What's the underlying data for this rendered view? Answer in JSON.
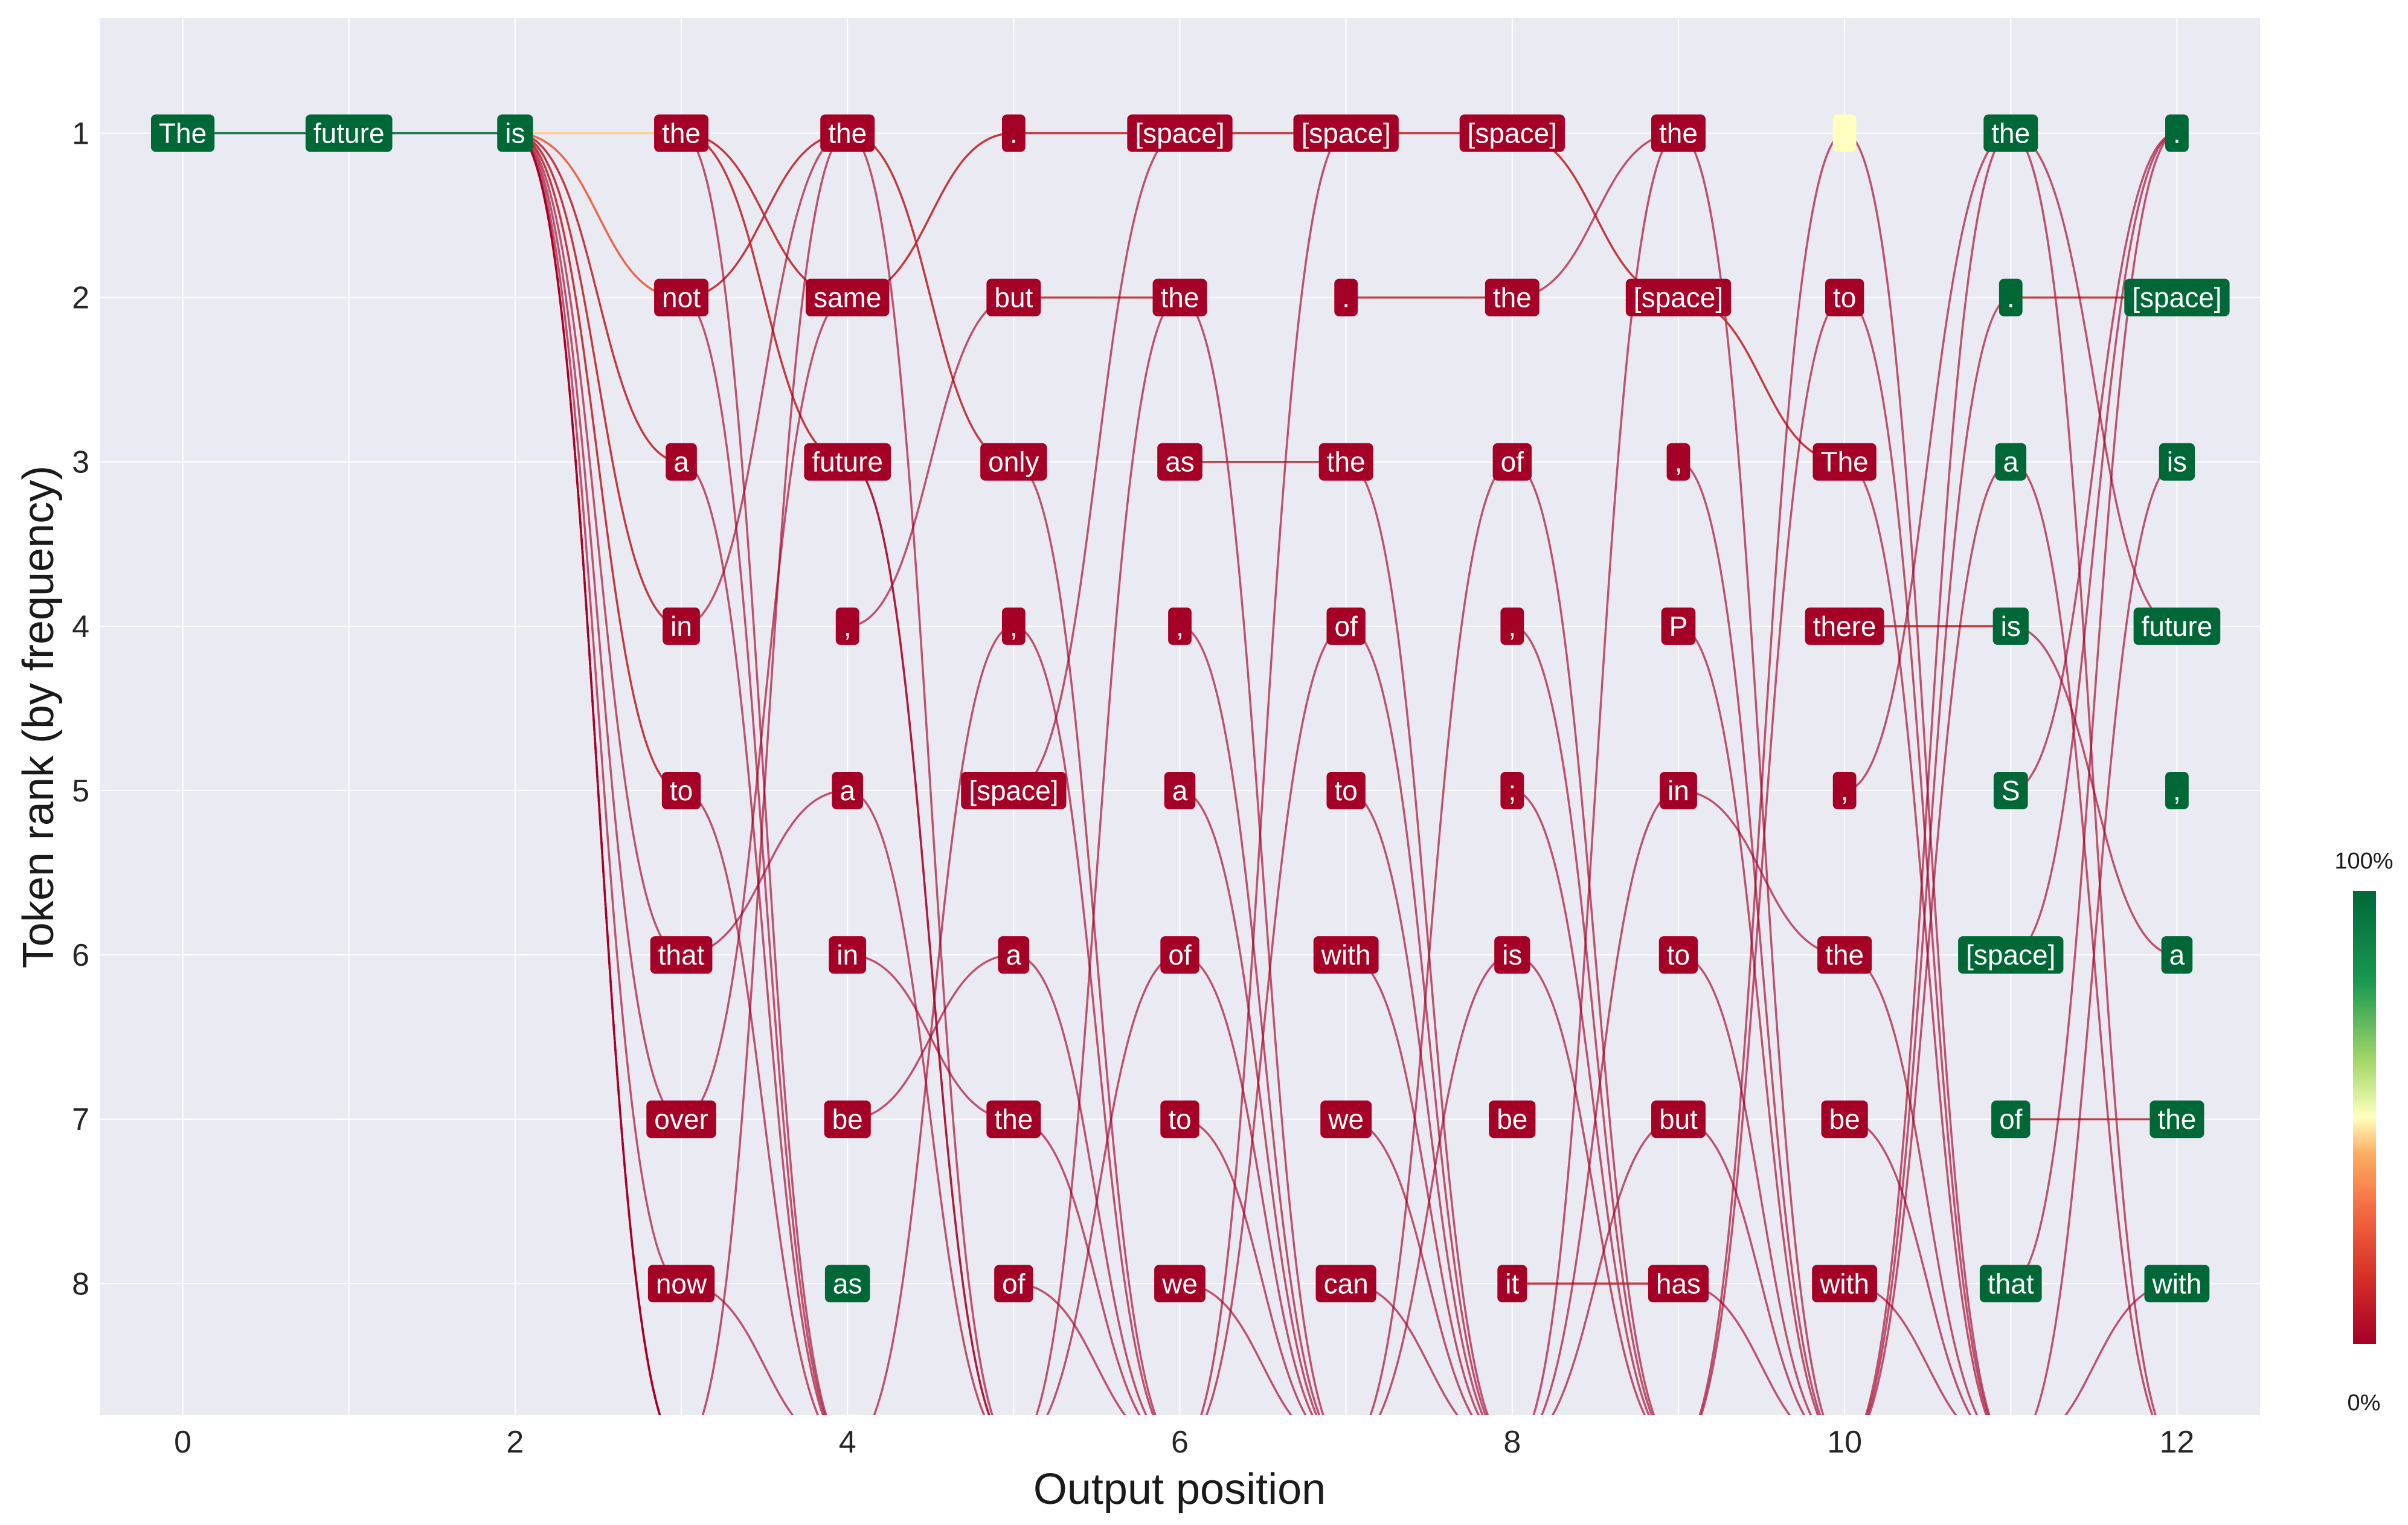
{
  "chart_data": {
    "type": "line",
    "xlabel": "Output position",
    "ylabel": "Token rank (by frequency)",
    "xlim": [
      -0.5,
      12.5
    ],
    "ylim": [
      8.8,
      0.3
    ],
    "x_ticks": [
      "0",
      "2",
      "4",
      "6",
      "8",
      "10",
      "12"
    ],
    "y_ticks": [
      "1",
      "2",
      "3",
      "4",
      "5",
      "6",
      "7",
      "8"
    ],
    "grid": true,
    "colorbar": {
      "top_label": "100%",
      "bottom_label": "0%",
      "low_color": "#a50026",
      "mid_color": "#ffffbf",
      "high_color": "#006837"
    },
    "columns": [
      {
        "x": 0,
        "tokens": [
          {
            "rank": 1,
            "text": "The",
            "p": 1.0
          }
        ]
      },
      {
        "x": 1,
        "tokens": [
          {
            "rank": 1,
            "text": "future",
            "p": 1.0
          }
        ]
      },
      {
        "x": 2,
        "tokens": [
          {
            "rank": 1,
            "text": "is",
            "p": 1.0
          }
        ]
      },
      {
        "x": 3,
        "tokens": [
          {
            "rank": 1,
            "text": "the",
            "p": 0.0
          },
          {
            "rank": 2,
            "text": "not",
            "p": 0.0
          },
          {
            "rank": 3,
            "text": "a",
            "p": 0.0
          },
          {
            "rank": 4,
            "text": "in",
            "p": 0.0
          },
          {
            "rank": 5,
            "text": "to",
            "p": 0.0
          },
          {
            "rank": 6,
            "text": "that",
            "p": 0.0
          },
          {
            "rank": 7,
            "text": "over",
            "p": 0.0
          },
          {
            "rank": 8,
            "text": "now",
            "p": 0.0
          }
        ]
      },
      {
        "x": 4,
        "tokens": [
          {
            "rank": 1,
            "text": "the",
            "p": 0.0
          },
          {
            "rank": 2,
            "text": "same",
            "p": 0.0
          },
          {
            "rank": 3,
            "text": "future",
            "p": 0.0
          },
          {
            "rank": 4,
            "text": ",",
            "p": 0.0
          },
          {
            "rank": 5,
            "text": "a",
            "p": 0.0
          },
          {
            "rank": 6,
            "text": "in",
            "p": 0.0
          },
          {
            "rank": 7,
            "text": "be",
            "p": 0.0
          },
          {
            "rank": 8,
            "text": "as",
            "p": 1.0
          }
        ]
      },
      {
        "x": 5,
        "tokens": [
          {
            "rank": 1,
            "text": ".",
            "p": 0.0
          },
          {
            "rank": 2,
            "text": "but",
            "p": 0.0
          },
          {
            "rank": 3,
            "text": "only",
            "p": 0.0
          },
          {
            "rank": 4,
            "text": ",",
            "p": 0.0
          },
          {
            "rank": 5,
            "text": "[space]",
            "p": 0.0
          },
          {
            "rank": 6,
            "text": "a",
            "p": 0.0
          },
          {
            "rank": 7,
            "text": "the",
            "p": 0.0
          },
          {
            "rank": 8,
            "text": "of",
            "p": 0.0
          }
        ]
      },
      {
        "x": 6,
        "tokens": [
          {
            "rank": 1,
            "text": "[space]",
            "p": 0.0
          },
          {
            "rank": 2,
            "text": "the",
            "p": 0.0
          },
          {
            "rank": 3,
            "text": "as",
            "p": 0.0
          },
          {
            "rank": 4,
            "text": ",",
            "p": 0.0
          },
          {
            "rank": 5,
            "text": "a",
            "p": 0.0
          },
          {
            "rank": 6,
            "text": "of",
            "p": 0.0
          },
          {
            "rank": 7,
            "text": "to",
            "p": 0.0
          },
          {
            "rank": 8,
            "text": "we",
            "p": 0.0
          }
        ]
      },
      {
        "x": 7,
        "tokens": [
          {
            "rank": 1,
            "text": "[space]",
            "p": 0.0
          },
          {
            "rank": 2,
            "text": ".",
            "p": 0.0
          },
          {
            "rank": 3,
            "text": "the",
            "p": 0.0
          },
          {
            "rank": 4,
            "text": "of",
            "p": 0.0
          },
          {
            "rank": 5,
            "text": "to",
            "p": 0.0
          },
          {
            "rank": 6,
            "text": "with",
            "p": 0.0
          },
          {
            "rank": 7,
            "text": "we",
            "p": 0.0
          },
          {
            "rank": 8,
            "text": "can",
            "p": 0.0
          }
        ]
      },
      {
        "x": 8,
        "tokens": [
          {
            "rank": 1,
            "text": "[space]",
            "p": 0.0
          },
          {
            "rank": 2,
            "text": "the",
            "p": 0.0
          },
          {
            "rank": 3,
            "text": "of",
            "p": 0.0
          },
          {
            "rank": 4,
            "text": ",",
            "p": 0.0
          },
          {
            "rank": 5,
            "text": ";",
            "p": 0.0
          },
          {
            "rank": 6,
            "text": "is",
            "p": 0.0
          },
          {
            "rank": 7,
            "text": "be",
            "p": 0.0
          },
          {
            "rank": 8,
            "text": "it",
            "p": 0.0
          }
        ]
      },
      {
        "x": 9,
        "tokens": [
          {
            "rank": 1,
            "text": "the",
            "p": 0.0
          },
          {
            "rank": 2,
            "text": "[space]",
            "p": 0.0
          },
          {
            "rank": 3,
            "text": ",",
            "p": 0.0
          },
          {
            "rank": 4,
            "text": "P",
            "p": 0.0
          },
          {
            "rank": 5,
            "text": "in",
            "p": 0.0
          },
          {
            "rank": 6,
            "text": "to",
            "p": 0.0
          },
          {
            "rank": 7,
            "text": "but",
            "p": 0.0
          },
          {
            "rank": 8,
            "text": "has",
            "p": 0.0
          }
        ]
      },
      {
        "x": 10,
        "tokens": [
          {
            "rank": 1,
            "text": ".",
            "p": 0.5
          },
          {
            "rank": 2,
            "text": "to",
            "p": 0.0
          },
          {
            "rank": 3,
            "text": "The",
            "p": 0.0
          },
          {
            "rank": 4,
            "text": "there",
            "p": 0.0
          },
          {
            "rank": 5,
            "text": ",",
            "p": 0.0
          },
          {
            "rank": 6,
            "text": "the",
            "p": 0.0
          },
          {
            "rank": 7,
            "text": "be",
            "p": 0.0
          },
          {
            "rank": 8,
            "text": "with",
            "p": 0.0
          }
        ]
      },
      {
        "x": 11,
        "tokens": [
          {
            "rank": 1,
            "text": "the",
            "p": 1.0
          },
          {
            "rank": 2,
            "text": ".",
            "p": 1.0
          },
          {
            "rank": 3,
            "text": "a",
            "p": 1.0
          },
          {
            "rank": 4,
            "text": "is",
            "p": 1.0
          },
          {
            "rank": 5,
            "text": "S",
            "p": 1.0
          },
          {
            "rank": 6,
            "text": "[space]",
            "p": 1.0
          },
          {
            "rank": 7,
            "text": "of",
            "p": 1.0
          },
          {
            "rank": 8,
            "text": "that",
            "p": 1.0
          }
        ]
      },
      {
        "x": 12,
        "tokens": [
          {
            "rank": 1,
            "text": ".",
            "p": 1.0
          },
          {
            "rank": 2,
            "text": "[space]",
            "p": 1.0
          },
          {
            "rank": 3,
            "text": "is",
            "p": 1.0
          },
          {
            "rank": 4,
            "text": "future",
            "p": 1.0
          },
          {
            "rank": 5,
            "text": ",",
            "p": 1.0
          },
          {
            "rank": 6,
            "text": "a",
            "p": 1.0
          },
          {
            "rank": 7,
            "text": "the",
            "p": 1.0
          },
          {
            "rank": 8,
            "text": "with",
            "p": 1.0
          }
        ]
      }
    ],
    "connections": [
      {
        "x": 0,
        "from": 1,
        "to": 1,
        "p": 1.0
      },
      {
        "x": 1,
        "from": 1,
        "to": 1,
        "p": 1.0
      },
      {
        "x": 2,
        "from": 1,
        "to": 1,
        "p": 0.45
      },
      {
        "x": 2,
        "from": 1,
        "to": 2,
        "p": 0.25
      },
      {
        "x": 2,
        "from": 1,
        "to": 3,
        "p": 0.12
      },
      {
        "x": 2,
        "from": 1,
        "to": 4,
        "p": 0.08
      },
      {
        "x": 2,
        "from": 1,
        "to": 5,
        "p": 0.05
      },
      {
        "x": 2,
        "from": 1,
        "to": 6,
        "p": 0.04
      },
      {
        "x": 2,
        "from": 1,
        "to": 7,
        "p": 0.03
      },
      {
        "x": 2,
        "from": 1,
        "to": 8,
        "p": 0.02
      },
      {
        "x": 2,
        "from": 1,
        "to": 9,
        "p": 0.02
      },
      {
        "x": 2,
        "from": 1,
        "to": 9,
        "p": 0.02
      },
      {
        "x": 2,
        "from": 1,
        "to": 9,
        "p": 0.02
      },
      {
        "x": 2,
        "from": 1,
        "to": 9,
        "p": 0.02
      },
      {
        "x": 3,
        "from": 1,
        "to": 2,
        "p": 0.1
      },
      {
        "x": 3,
        "from": 1,
        "to": 3,
        "p": 0.1
      },
      {
        "x": 3,
        "from": 2,
        "to": 1,
        "p": 0.1
      },
      {
        "x": 3,
        "from": 3,
        "to": 9,
        "p": 0.02
      },
      {
        "x": 3,
        "from": 4,
        "to": 1,
        "p": 0.04
      },
      {
        "x": 3,
        "from": 5,
        "to": 9,
        "p": 0.02
      },
      {
        "x": 3,
        "from": 6,
        "to": 5,
        "p": 0.03
      },
      {
        "x": 3,
        "from": 7,
        "to": 2,
        "p": 0.03
      },
      {
        "x": 3,
        "from": 8,
        "to": 9,
        "p": 0.02
      },
      {
        "x": 3,
        "from": 1,
        "to": 9,
        "p": 0.02
      },
      {
        "x": 3,
        "from": 2,
        "to": 9,
        "p": 0.02
      },
      {
        "x": 3,
        "from": 9,
        "to": 1,
        "p": 0.02
      },
      {
        "x": 4,
        "from": 1,
        "to": 3,
        "p": 0.06
      },
      {
        "x": 4,
        "from": 2,
        "to": 1,
        "p": 0.06
      },
      {
        "x": 4,
        "from": 3,
        "to": 9,
        "p": 0.02
      },
      {
        "x": 4,
        "from": 4,
        "to": 2,
        "p": 0.04
      },
      {
        "x": 4,
        "from": 5,
        "to": 9,
        "p": 0.02
      },
      {
        "x": 4,
        "from": 6,
        "to": 7,
        "p": 0.03
      },
      {
        "x": 4,
        "from": 7,
        "to": 6,
        "p": 0.03
      },
      {
        "x": 4,
        "from": 1,
        "to": 9,
        "p": 0.02
      },
      {
        "x": 4,
        "from": 3,
        "to": 9,
        "p": 0.02
      },
      {
        "x": 4,
        "from": 9,
        "to": 4,
        "p": 0.02
      },
      {
        "x": 5,
        "from": 1,
        "to": 1,
        "p": 0.1
      },
      {
        "x": 5,
        "from": 2,
        "to": 2,
        "p": 0.06
      },
      {
        "x": 5,
        "from": 3,
        "to": 9,
        "p": 0.02
      },
      {
        "x": 5,
        "from": 4,
        "to": 9,
        "p": 0.02
      },
      {
        "x": 5,
        "from": 5,
        "to": 1,
        "p": 0.04
      },
      {
        "x": 5,
        "from": 6,
        "to": 9,
        "p": 0.02
      },
      {
        "x": 5,
        "from": 7,
        "to": 9,
        "p": 0.02
      },
      {
        "x": 5,
        "from": 8,
        "to": 9,
        "p": 0.02
      },
      {
        "x": 5,
        "from": 9,
        "to": 2,
        "p": 0.02
      },
      {
        "x": 5,
        "from": 9,
        "to": 6,
        "p": 0.02
      },
      {
        "x": 6,
        "from": 1,
        "to": 1,
        "p": 0.08
      },
      {
        "x": 6,
        "from": 2,
        "to": 9,
        "p": 0.02
      },
      {
        "x": 6,
        "from": 3,
        "to": 3,
        "p": 0.06
      },
      {
        "x": 6,
        "from": 4,
        "to": 9,
        "p": 0.02
      },
      {
        "x": 6,
        "from": 5,
        "to": 9,
        "p": 0.02
      },
      {
        "x": 6,
        "from": 6,
        "to": 9,
        "p": 0.02
      },
      {
        "x": 6,
        "from": 7,
        "to": 9,
        "p": 0.02
      },
      {
        "x": 6,
        "from": 8,
        "to": 9,
        "p": 0.02
      },
      {
        "x": 6,
        "from": 9,
        "to": 1,
        "p": 0.02
      },
      {
        "x": 6,
        "from": 9,
        "to": 4,
        "p": 0.02
      },
      {
        "x": 7,
        "from": 1,
        "to": 1,
        "p": 0.08
      },
      {
        "x": 7,
        "from": 2,
        "to": 2,
        "p": 0.05
      },
      {
        "x": 7,
        "from": 3,
        "to": 9,
        "p": 0.02
      },
      {
        "x": 7,
        "from": 4,
        "to": 9,
        "p": 0.02
      },
      {
        "x": 7,
        "from": 5,
        "to": 9,
        "p": 0.02
      },
      {
        "x": 7,
        "from": 6,
        "to": 9,
        "p": 0.02
      },
      {
        "x": 7,
        "from": 7,
        "to": 9,
        "p": 0.02
      },
      {
        "x": 7,
        "from": 8,
        "to": 9,
        "p": 0.02
      },
      {
        "x": 7,
        "from": 9,
        "to": 3,
        "p": 0.02
      },
      {
        "x": 7,
        "from": 9,
        "to": 6,
        "p": 0.02
      },
      {
        "x": 8,
        "from": 1,
        "to": 2,
        "p": 0.06
      },
      {
        "x": 8,
        "from": 2,
        "to": 1,
        "p": 0.04
      },
      {
        "x": 8,
        "from": 3,
        "to": 9,
        "p": 0.02
      },
      {
        "x": 8,
        "from": 4,
        "to": 9,
        "p": 0.02
      },
      {
        "x": 8,
        "from": 5,
        "to": 9,
        "p": 0.02
      },
      {
        "x": 8,
        "from": 6,
        "to": 9,
        "p": 0.02
      },
      {
        "x": 8,
        "from": 8,
        "to": 8,
        "p": 0.05
      },
      {
        "x": 8,
        "from": 9,
        "to": 1,
        "p": 0.02
      },
      {
        "x": 8,
        "from": 9,
        "to": 5,
        "p": 0.02
      },
      {
        "x": 8,
        "from": 9,
        "to": 7,
        "p": 0.02
      },
      {
        "x": 9,
        "from": 1,
        "to": 9,
        "p": 0.02
      },
      {
        "x": 9,
        "from": 2,
        "to": 3,
        "p": 0.06
      },
      {
        "x": 9,
        "from": 3,
        "to": 9,
        "p": 0.02
      },
      {
        "x": 9,
        "from": 4,
        "to": 9,
        "p": 0.02
      },
      {
        "x": 9,
        "from": 5,
        "to": 6,
        "p": 0.03
      },
      {
        "x": 9,
        "from": 6,
        "to": 9,
        "p": 0.02
      },
      {
        "x": 9,
        "from": 7,
        "to": 9,
        "p": 0.02
      },
      {
        "x": 9,
        "from": 8,
        "to": 9,
        "p": 0.02
      },
      {
        "x": 9,
        "from": 9,
        "to": 1,
        "p": 0.02
      },
      {
        "x": 9,
        "from": 9,
        "to": 2,
        "p": 0.02
      },
      {
        "x": 10,
        "from": 1,
        "to": 9,
        "p": 0.02
      },
      {
        "x": 10,
        "from": 2,
        "to": 9,
        "p": 0.02
      },
      {
        "x": 10,
        "from": 3,
        "to": 9,
        "p": 0.02
      },
      {
        "x": 10,
        "from": 4,
        "to": 4,
        "p": 0.05
      },
      {
        "x": 10,
        "from": 5,
        "to": 1,
        "p": 0.03
      },
      {
        "x": 10,
        "from": 6,
        "to": 9,
        "p": 0.02
      },
      {
        "x": 10,
        "from": 7,
        "to": 9,
        "p": 0.02
      },
      {
        "x": 10,
        "from": 8,
        "to": 9,
        "p": 0.02
      },
      {
        "x": 10,
        "from": 9,
        "to": 1,
        "p": 0.02
      },
      {
        "x": 10,
        "from": 9,
        "to": 2,
        "p": 0.02
      },
      {
        "x": 10,
        "from": 9,
        "to": 3,
        "p": 0.02
      },
      {
        "x": 11,
        "from": 1,
        "to": 9,
        "p": 0.02
      },
      {
        "x": 11,
        "from": 2,
        "to": 2,
        "p": 0.06
      },
      {
        "x": 11,
        "from": 3,
        "to": 9,
        "p": 0.02
      },
      {
        "x": 11,
        "from": 4,
        "to": 6,
        "p": 0.03
      },
      {
        "x": 11,
        "from": 5,
        "to": 1,
        "p": 0.03
      },
      {
        "x": 11,
        "from": 6,
        "to": 1,
        "p": 0.03
      },
      {
        "x": 11,
        "from": 7,
        "to": 7,
        "p": 0.05
      },
      {
        "x": 11,
        "from": 8,
        "to": 1,
        "p": 0.03
      },
      {
        "x": 11,
        "from": 1,
        "to": 4,
        "p": 0.03
      },
      {
        "x": 11,
        "from": 9,
        "to": 8,
        "p": 0.02
      },
      {
        "x": 11,
        "from": 9,
        "to": 3,
        "p": 0.02
      }
    ]
  }
}
